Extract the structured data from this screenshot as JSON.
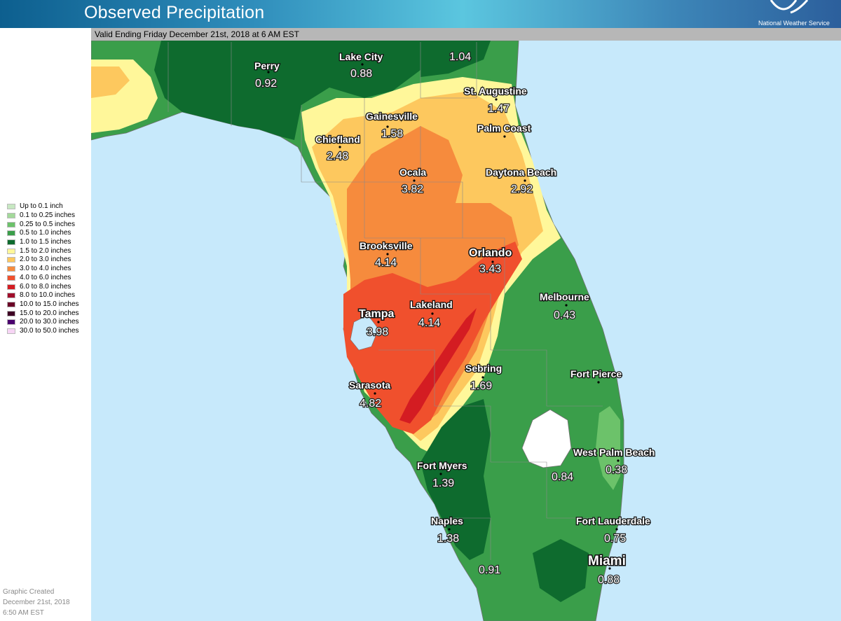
{
  "header": {
    "title": "Observed Precipitation",
    "agency": "National Weather Service"
  },
  "valid_text": "Valid Ending Friday December 21st, 2018 at 6 AM EST",
  "legend": [
    {
      "label": "Up to 0.1 inch",
      "color": "#c7e8c2"
    },
    {
      "label": "0.1 to 0.25 inches",
      "color": "#a3d99a"
    },
    {
      "label": "0.25 to 0.5 inches",
      "color": "#6cc26a"
    },
    {
      "label": "0.5 to 1.0 inches",
      "color": "#3a9e4a"
    },
    {
      "label": "1.0 to 1.5 inches",
      "color": "#0e6b2e"
    },
    {
      "label": "1.5 to 2.0 inches",
      "color": "#fff79a"
    },
    {
      "label": "2.0 to 3.0 inches",
      "color": "#fdc85e"
    },
    {
      "label": "3.0 to 4.0 inches",
      "color": "#f68b3d"
    },
    {
      "label": "4.0 to 6.0 inches",
      "color": "#f0502d"
    },
    {
      "label": "6.0 to 8.0 inches",
      "color": "#d41c22"
    },
    {
      "label": "8.0 to 10.0 inches",
      "color": "#a00d2a"
    },
    {
      "label": "10.0 to 15.0 inches",
      "color": "#6a0326"
    },
    {
      "label": "15.0 to 20.0 inches",
      "color": "#3e0024"
    },
    {
      "label": "20.0 to 30.0 inches",
      "color": "#4a006e"
    },
    {
      "label": "30.0 to 50.0 inches",
      "color": "#f7d5f5"
    }
  ],
  "credit": {
    "line1": "Graphic Created",
    "line2": "December 21st, 2018",
    "line3": "6:50 AM EST"
  },
  "stations": [
    {
      "name": "Perry",
      "value": "0.92"
    },
    {
      "name": "Lake City",
      "value": "0.88"
    },
    {
      "name": "",
      "value": "1.04"
    },
    {
      "name": "St. Augustine",
      "value": "1.47"
    },
    {
      "name": "Gainesville",
      "value": "1.58"
    },
    {
      "name": "Palm Coast",
      "value": ""
    },
    {
      "name": "Chiefland",
      "value": "2.48"
    },
    {
      "name": "Ocala",
      "value": "3.82"
    },
    {
      "name": "Daytona Beach",
      "value": "2.92"
    },
    {
      "name": "Brooksville",
      "value": "4.14"
    },
    {
      "name": "Orlando",
      "value": "3.43"
    },
    {
      "name": "Melbourne",
      "value": "0.43"
    },
    {
      "name": "Tampa",
      "value": "3.98"
    },
    {
      "name": "Lakeland",
      "value": "4.14"
    },
    {
      "name": "Sebring",
      "value": "1.69"
    },
    {
      "name": "Fort Pierce",
      "value": ""
    },
    {
      "name": "Sarasota",
      "value": "4.82"
    },
    {
      "name": "West Palm Beach",
      "value": "0.38"
    },
    {
      "name": "",
      "value": "0.84"
    },
    {
      "name": "Fort Myers",
      "value": "1.39"
    },
    {
      "name": "Naples",
      "value": "1.38"
    },
    {
      "name": "Fort Lauderdale",
      "value": "0.75"
    },
    {
      "name": "",
      "value": "0.91"
    },
    {
      "name": "Miami",
      "value": "0.88"
    }
  ]
}
